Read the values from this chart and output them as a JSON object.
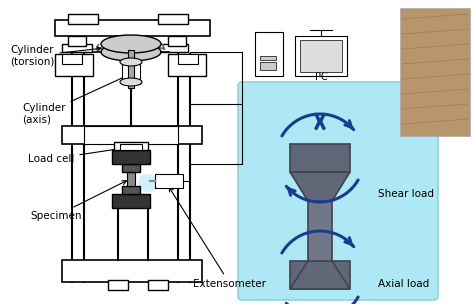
{
  "bg_color": "#ffffff",
  "light_blue_bg": "#ade8f4",
  "frame_color": "#000000",
  "arrow_color": "#1a3c8f",
  "specimen_color": "#555555",
  "labels": {
    "extensometer": "Extensometer",
    "specimen": "Specimen",
    "load_cell": "Load cell",
    "cylinder_axis": "Cylinder\n(axis)",
    "cylinder_torsion": "Cylinder\n(torsion)",
    "axial_load": "Axial load",
    "shear_load": "Shear load",
    "pc": "PC"
  },
  "fig_width": 4.74,
  "fig_height": 3.04,
  "dpi": 100
}
